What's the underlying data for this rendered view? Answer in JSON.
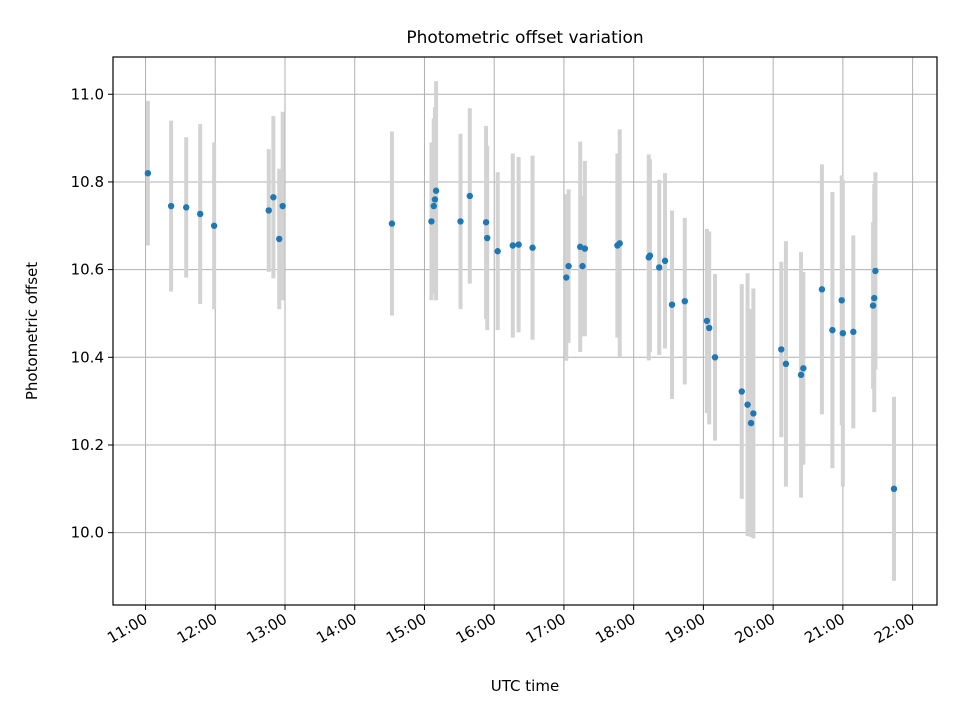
{
  "chart_data": {
    "type": "scatter",
    "title": "Photometric offset variation",
    "xlabel": "UTC time",
    "ylabel": "Photometric offset",
    "x_ticks": [
      "11:00",
      "12:00",
      "13:00",
      "14:00",
      "15:00",
      "16:00",
      "17:00",
      "18:00",
      "19:00",
      "20:00",
      "21:00",
      "22:00"
    ],
    "y_ticks": [
      "10.0",
      "10.2",
      "10.4",
      "10.6",
      "10.8",
      "11.0"
    ],
    "xlim": [
      "10:32",
      "22:21"
    ],
    "ylim": [
      9.835,
      11.085
    ],
    "grid": true,
    "colors": {
      "point": "#1f77b4",
      "errorbar": "#d3d3d3",
      "grid": "#b0b0b0"
    },
    "series": [
      {
        "x": [
          "11:02",
          "11:22",
          "11:35",
          "11:47",
          "11:59",
          "12:46",
          "12:50",
          "12:55",
          "12:58",
          "14:32",
          "15:06",
          "15:08",
          "15:09",
          "15:10",
          "15:31",
          "15:39",
          "15:53",
          "15:54",
          "16:03",
          "16:16",
          "16:21",
          "16:33",
          "17:02",
          "17:04",
          "17:14",
          "17:16",
          "17:18",
          "17:46",
          "17:48",
          "18:13",
          "18:14",
          "18:22",
          "18:27",
          "18:33",
          "18:44",
          "19:03",
          "19:05",
          "19:10",
          "19:33",
          "19:38",
          "19:41",
          "19:43",
          "20:07",
          "20:11",
          "20:24",
          "20:26",
          "20:42",
          "20:51",
          "20:59",
          "21:00",
          "21:09",
          "21:26",
          "21:27",
          "21:28",
          "21:44"
        ],
        "y": [
          10.82,
          10.745,
          10.742,
          10.727,
          10.7,
          10.735,
          10.765,
          10.67,
          10.745,
          10.705,
          10.71,
          10.745,
          10.76,
          10.78,
          10.71,
          10.768,
          10.708,
          10.672,
          10.642,
          10.655,
          10.657,
          10.65,
          10.582,
          10.608,
          10.652,
          10.608,
          10.648,
          10.655,
          10.66,
          10.628,
          10.632,
          10.605,
          10.62,
          10.52,
          10.528,
          10.483,
          10.467,
          10.4,
          10.322,
          10.292,
          10.25,
          10.272,
          10.418,
          10.385,
          10.36,
          10.375,
          10.555,
          10.462,
          10.53,
          10.455,
          10.458,
          10.518,
          10.535,
          10.597,
          10.1
        ],
        "err": [
          0.165,
          0.195,
          0.16,
          0.205,
          0.19,
          0.14,
          0.185,
          0.16,
          0.215,
          0.21,
          0.18,
          0.2,
          0.21,
          0.25,
          0.2,
          0.2,
          0.22,
          0.21,
          0.18,
          0.21,
          0.2,
          0.21,
          0.19,
          0.175,
          0.24,
          0.16,
          0.2,
          0.21,
          0.26,
          0.235,
          0.22,
          0.2,
          0.2,
          0.215,
          0.19,
          0.21,
          0.22,
          0.19,
          0.245,
          0.3,
          0.26,
          0.285,
          0.2,
          0.28,
          0.28,
          0.22,
          0.285,
          0.315,
          0.285,
          0.35,
          0.22,
          0.19,
          0.26,
          0.225,
          0.21
        ]
      }
    ]
  }
}
